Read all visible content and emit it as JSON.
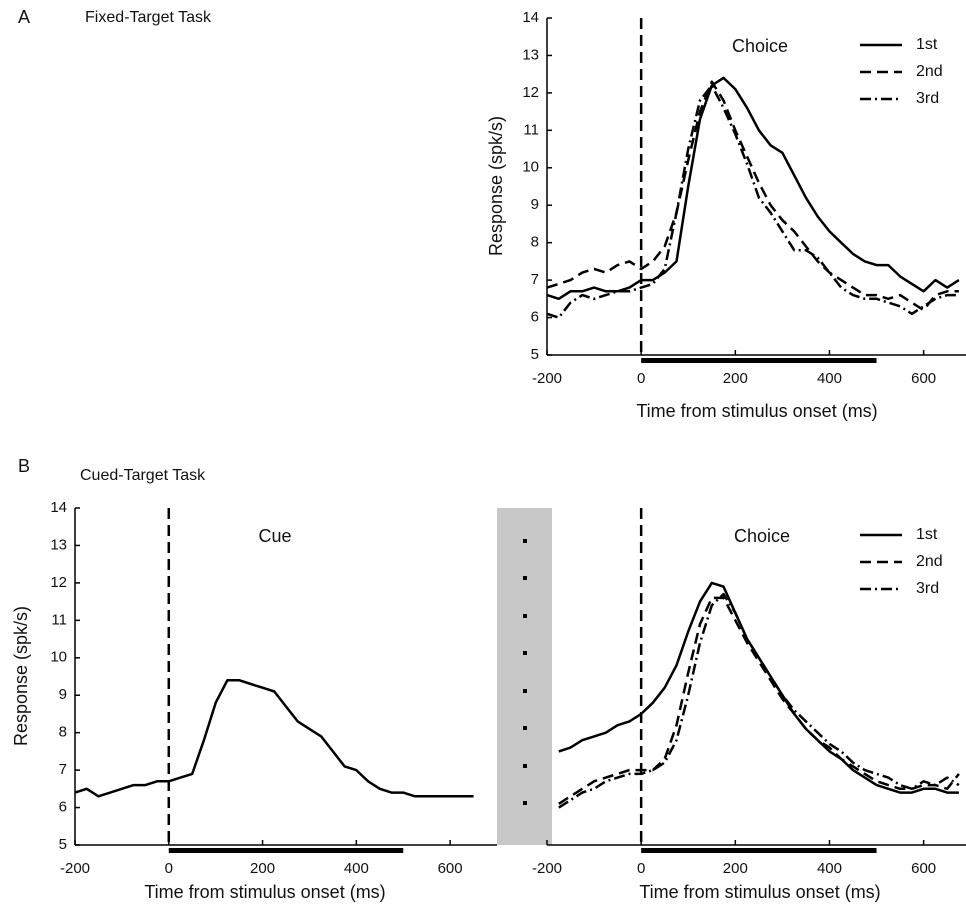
{
  "chart_data": [
    {
      "type": "line",
      "panel_label": "A",
      "title": "Fixed-Target Task",
      "annotation": "Choice",
      "xlabel": "Time from stimulus onset (ms)",
      "ylabel": "Response (spk/s)",
      "xlim": [
        -200,
        690
      ],
      "ylim": [
        5,
        14
      ],
      "xticks": [
        -200,
        0,
        200,
        400,
        600
      ],
      "yticks": [
        5,
        6,
        7,
        8,
        9,
        10,
        11,
        12,
        13,
        14
      ],
      "event_line": 0,
      "stimulus_bar": [
        0,
        500
      ],
      "x": [
        -200,
        -175,
        -150,
        -125,
        -100,
        -75,
        -50,
        -25,
        0,
        25,
        50,
        75,
        100,
        125,
        150,
        175,
        200,
        225,
        250,
        275,
        300,
        325,
        350,
        375,
        400,
        425,
        450,
        475,
        500,
        525,
        550,
        575,
        600,
        625,
        650,
        675
      ],
      "series": [
        {
          "name": "1st",
          "color": "#000000",
          "dash": "solid",
          "values": [
            6.6,
            6.5,
            6.7,
            6.7,
            6.8,
            6.7,
            6.7,
            6.8,
            7.0,
            7.0,
            7.2,
            7.5,
            9.5,
            11.3,
            12.2,
            12.4,
            12.1,
            11.6,
            11.0,
            10.6,
            10.4,
            9.8,
            9.2,
            8.7,
            8.3,
            8.0,
            7.7,
            7.5,
            7.4,
            7.4,
            7.1,
            6.9,
            6.7,
            7.0,
            6.8,
            7.0
          ]
        },
        {
          "name": "2nd",
          "color": "#000000",
          "dash": "dashed",
          "values": [
            6.8,
            6.9,
            7.0,
            7.2,
            7.3,
            7.2,
            7.4,
            7.5,
            7.3,
            7.5,
            7.9,
            8.8,
            10.2,
            11.5,
            12.3,
            11.8,
            11.0,
            10.3,
            9.6,
            9.0,
            8.6,
            8.3,
            7.9,
            7.5,
            7.2,
            7.0,
            6.8,
            6.6,
            6.6,
            6.5,
            6.6,
            6.4,
            6.2,
            6.6,
            6.7,
            6.7
          ]
        },
        {
          "name": "3rd",
          "color": "#000000",
          "dash": "dashdot",
          "values": [
            6.1,
            6.0,
            6.4,
            6.6,
            6.5,
            6.6,
            6.7,
            6.7,
            6.8,
            6.9,
            7.3,
            8.8,
            10.5,
            11.8,
            12.2,
            11.6,
            10.9,
            10.1,
            9.2,
            8.8,
            8.3,
            7.8,
            7.8,
            7.6,
            7.2,
            6.8,
            6.6,
            6.5,
            6.5,
            6.4,
            6.3,
            6.1,
            6.3,
            6.5,
            6.6,
            6.6
          ]
        }
      ]
    },
    {
      "type": "line",
      "panel_label": "B",
      "title": "Cued-Target Task",
      "annotation": "Cue",
      "xlabel": "Time from stimulus onset (ms)",
      "ylabel": "Response (spk/s)",
      "xlim": [
        -200,
        700
      ],
      "ylim": [
        5,
        14
      ],
      "xticks": [
        -200,
        0,
        200,
        400,
        600
      ],
      "yticks": [
        5,
        6,
        7,
        8,
        9,
        10,
        11,
        12,
        13,
        14
      ],
      "event_line": 0,
      "stimulus_bar": [
        0,
        500
      ],
      "color": "#000000",
      "x": [
        -200,
        -175,
        -150,
        -125,
        -100,
        -75,
        -50,
        -25,
        0,
        25,
        50,
        75,
        100,
        125,
        150,
        175,
        200,
        225,
        250,
        275,
        300,
        325,
        350,
        375,
        400,
        425,
        450,
        475,
        500,
        525,
        550,
        575,
        600,
        625,
        650
      ],
      "values": [
        6.4,
        6.5,
        6.3,
        6.4,
        6.5,
        6.6,
        6.6,
        6.7,
        6.7,
        6.8,
        6.9,
        7.8,
        8.8,
        9.4,
        9.4,
        9.3,
        9.2,
        9.1,
        8.7,
        8.3,
        8.1,
        7.9,
        7.5,
        7.1,
        7.0,
        6.7,
        6.5,
        6.4,
        6.4,
        6.3,
        6.3,
        6.3,
        6.3,
        6.3,
        6.3
      ]
    },
    {
      "type": "line",
      "annotation": "Choice",
      "xlabel": "Time from stimulus onset (ms)",
      "xlim": [
        -200,
        690
      ],
      "ylim": [
        5,
        14
      ],
      "xticks": [
        -200,
        0,
        200,
        400,
        600
      ],
      "event_line": 0,
      "stimulus_bar": [
        0,
        500
      ],
      "x": [
        -175,
        -150,
        -125,
        -100,
        -75,
        -50,
        -25,
        0,
        25,
        50,
        75,
        100,
        125,
        150,
        175,
        200,
        225,
        250,
        275,
        300,
        325,
        350,
        375,
        400,
        425,
        450,
        475,
        500,
        525,
        550,
        575,
        600,
        625,
        650,
        675
      ],
      "series": [
        {
          "name": "1st",
          "color": "#000000",
          "dash": "solid",
          "values": [
            7.5,
            7.6,
            7.8,
            7.9,
            8.0,
            8.2,
            8.3,
            8.5,
            8.8,
            9.2,
            9.8,
            10.7,
            11.5,
            12.0,
            11.9,
            11.2,
            10.5,
            10.0,
            9.5,
            9.0,
            8.5,
            8.1,
            7.8,
            7.5,
            7.3,
            7.0,
            6.8,
            6.6,
            6.5,
            6.4,
            6.4,
            6.5,
            6.5,
            6.4,
            6.4
          ]
        },
        {
          "name": "2nd",
          "color": "#000000",
          "dash": "dashed",
          "values": [
            6.1,
            6.3,
            6.5,
            6.7,
            6.8,
            6.9,
            7.0,
            7.0,
            7.0,
            7.3,
            8.2,
            9.6,
            10.9,
            11.6,
            11.6,
            11.0,
            10.4,
            9.9,
            9.4,
            8.9,
            8.5,
            8.1,
            7.8,
            7.6,
            7.3,
            7.1,
            6.9,
            6.7,
            6.6,
            6.5,
            6.5,
            6.6,
            6.6,
            6.5,
            6.9
          ]
        },
        {
          "name": "3rd",
          "color": "#000000",
          "dash": "dashdot",
          "values": [
            6.0,
            6.2,
            6.4,
            6.5,
            6.7,
            6.8,
            6.9,
            6.9,
            7.0,
            7.2,
            7.8,
            9.0,
            10.4,
            11.4,
            11.7,
            11.2,
            10.5,
            10.0,
            9.5,
            9.0,
            8.6,
            8.3,
            8.0,
            7.7,
            7.5,
            7.2,
            7.0,
            6.9,
            6.8,
            6.6,
            6.5,
            6.7,
            6.6,
            6.8,
            6.6
          ]
        }
      ]
    }
  ]
}
